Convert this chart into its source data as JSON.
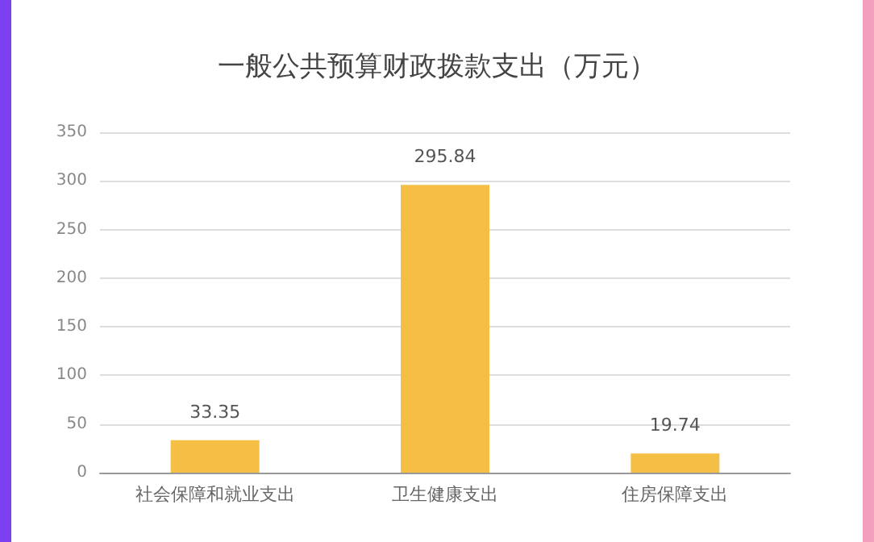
{
  "chart_data": {
    "type": "bar",
    "title": "一般公共预算财政拨款支出（万元）",
    "categories": [
      "社会保障和就业支出",
      "卫生健康支出",
      "住房保障支出"
    ],
    "values": [
      33.35,
      295.84,
      19.74
    ],
    "color": "#f5bf45",
    "ylim": [
      0,
      350
    ],
    "yticks": [
      0,
      50,
      100,
      150,
      200,
      250,
      300,
      350
    ],
    "grid": "y",
    "data_labels": true
  }
}
